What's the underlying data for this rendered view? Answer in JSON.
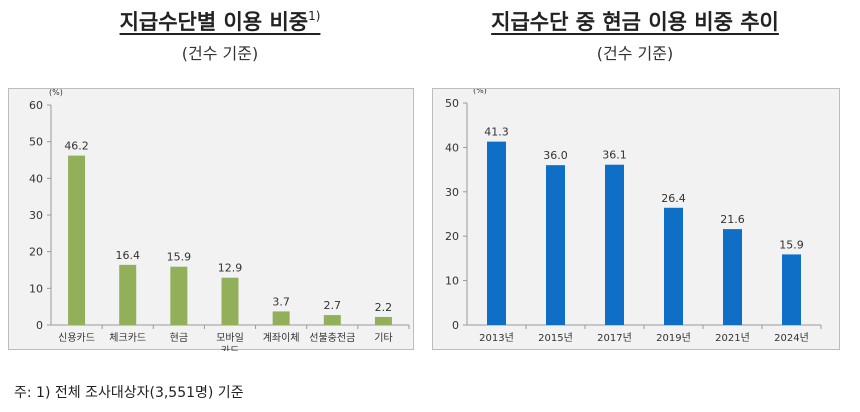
{
  "left": {
    "title": "지급수단별 이용 비중",
    "title_sup": "1)",
    "subtitle": "(건수 기준)"
  },
  "right": {
    "title": "지급수단 중 현금 이용 비중 추이",
    "subtitle": "(건수 기준)"
  },
  "footnote": "주: 1) 전체 조사대상자(3,551명) 기준",
  "chart_data": [
    {
      "type": "bar",
      "unit_label": "(%)",
      "categories": [
        "신용카드",
        "체크카드",
        "현금",
        "모바일\n카드",
        "계좌이체",
        "선불충전금",
        "기타"
      ],
      "values": [
        46.2,
        16.4,
        15.9,
        12.9,
        3.7,
        2.7,
        2.2
      ],
      "value_labels": [
        "46.2",
        "16.4",
        "15.9",
        "12.9",
        "3.7",
        "2.7",
        "2.2"
      ],
      "ylim": [
        0,
        60
      ],
      "yticks": [
        0,
        10,
        20,
        30,
        40,
        50,
        60
      ],
      "color": "#92b05a",
      "grid": false
    },
    {
      "type": "bar",
      "unit_label": "(%)",
      "categories": [
        "2013년",
        "2015년",
        "2017년",
        "2019년",
        "2021년",
        "2024년"
      ],
      "values": [
        41.3,
        36.0,
        36.1,
        26.4,
        21.6,
        15.9
      ],
      "value_labels": [
        "41.3",
        "36.0",
        "36.1",
        "26.4",
        "21.6",
        "15.9"
      ],
      "ylim": [
        0,
        50
      ],
      "yticks": [
        0,
        10,
        20,
        30,
        40,
        50
      ],
      "color": "#0f6fc6",
      "grid": false
    }
  ]
}
